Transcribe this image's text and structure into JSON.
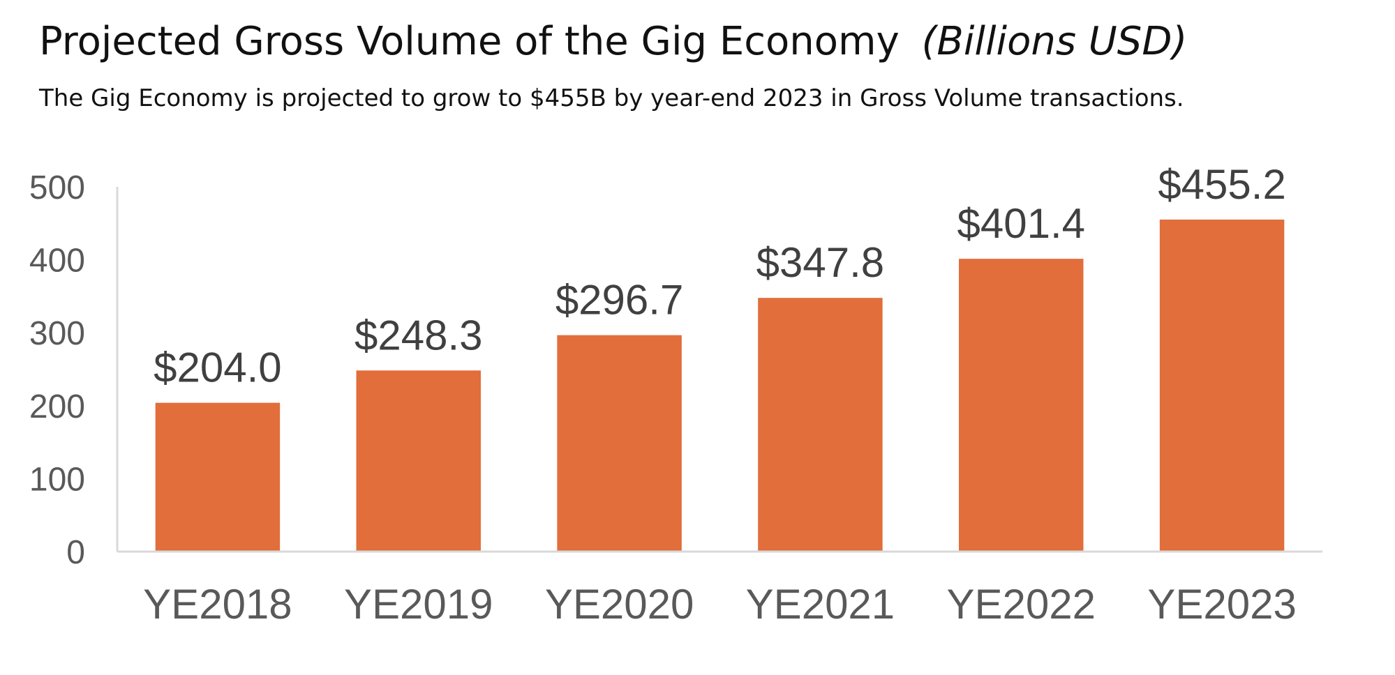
{
  "chart_data": {
    "type": "bar",
    "title": "Projected Gross Volume of the Gig Economy",
    "title_unit": "(Billions USD)",
    "subtitle": "The Gig Economy is projected to grow to $455B by year-end 2023 in Gross Volume transactions.",
    "xlabel": "",
    "ylabel": "",
    "ylim": [
      0,
      500
    ],
    "yticks": [
      0,
      100,
      200,
      300,
      400,
      500
    ],
    "categories": [
      "YE2018",
      "YE2019",
      "YE2020",
      "YE2021",
      "YE2022",
      "YE2023"
    ],
    "values": [
      204.0,
      248.3,
      296.7,
      347.8,
      401.4,
      455.2
    ],
    "data_labels": [
      "$204.0",
      "$248.3",
      "$296.7",
      "$347.8",
      "$401.4",
      "$455.2"
    ],
    "grid": false,
    "legend": "none",
    "bar_color": "#e16e3b",
    "axis_color": "#d9d9d9",
    "tick_label_color": "#595959",
    "data_label_color": "#404040"
  }
}
